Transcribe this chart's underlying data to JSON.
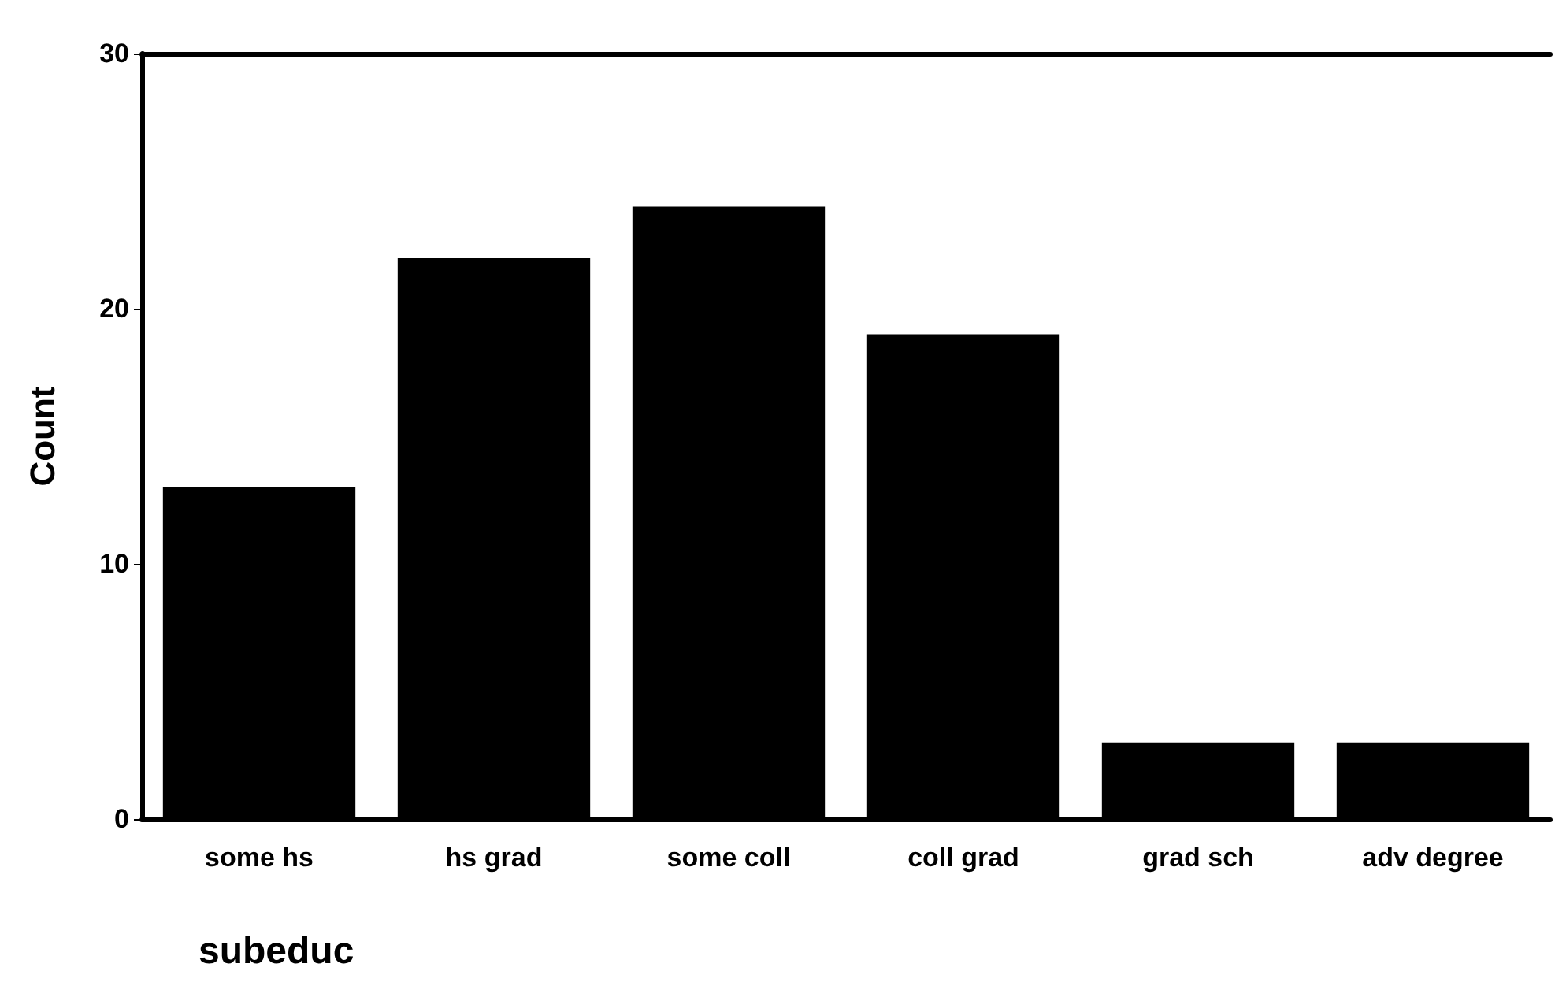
{
  "chart_data": {
    "type": "bar",
    "xlabel": "subeduc",
    "ylabel": "Count",
    "categories": [
      "some hs",
      "hs grad",
      "some coll",
      "coll grad",
      "grad sch",
      "adv degree"
    ],
    "values": [
      13,
      22,
      24,
      19,
      3,
      3
    ],
    "color": "#000000",
    "ylim": [
      0,
      30
    ],
    "yticks": [
      0,
      10,
      20,
      30
    ],
    "grid": false
  }
}
